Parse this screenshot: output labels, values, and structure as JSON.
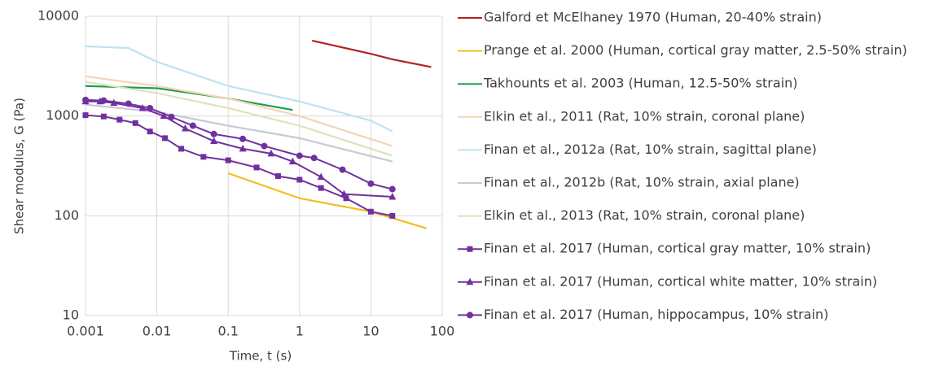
{
  "chart_data": {
    "type": "line",
    "log_x": true,
    "log_y": true,
    "grid": true,
    "legend": "right",
    "xlabel": "Time, t (s)",
    "ylabel": "Shear modulus, G (Pa)",
    "xlim": [
      0.001,
      100
    ],
    "xticks": [
      0.001,
      0.01,
      0.1,
      1,
      10,
      100
    ],
    "ylim": [
      10,
      10000
    ],
    "yticks": [
      10,
      100,
      1000,
      10000
    ],
    "series": [
      {
        "name": "Galford et McElhaney 1970 (Human, 20-40% strain)",
        "color": "#b22222",
        "x": [
          1.5,
          10,
          20,
          70
        ],
        "values": [
          5700,
          4200,
          3700,
          3100
        ]
      },
      {
        "name": "Prange et al. 2000 (Human, cortical gray matter, 2.5-50% strain)",
        "color": "#f0c020",
        "x": [
          0.1,
          1,
          10,
          60
        ],
        "values": [
          267,
          150,
          110,
          75
        ]
      },
      {
        "name": "Takhounts et al. 2003 (Human, 12.5-50% strain)",
        "color": "#1e9e50",
        "x": [
          0.001,
          0.01,
          0.1,
          0.8
        ],
        "values": [
          2000,
          1900,
          1500,
          1150
        ]
      },
      {
        "name": "Elkin et al., 2011 (Rat, 10% strain, coronal plane)",
        "color": "#f5d5b5",
        "x": [
          0.001,
          0.01,
          0.1,
          1,
          20
        ],
        "values": [
          2500,
          2000,
          1500,
          1000,
          500
        ]
      },
      {
        "name": "Finan et al., 2012a (Rat, 10% strain, sagittal plane)",
        "color": "#bde3f0",
        "x": [
          0.001,
          0.004,
          0.01,
          0.1,
          1,
          10,
          20
        ],
        "values": [
          5000,
          4800,
          3500,
          2000,
          1400,
          900,
          700
        ]
      },
      {
        "name": "Finan et al., 2012b (Rat, 10% strain, axial plane)",
        "color": "#c8c8d8",
        "x": [
          0.001,
          0.01,
          0.1,
          1,
          20
        ],
        "values": [
          1300,
          1100,
          800,
          600,
          350
        ]
      },
      {
        "name": "Elkin et al., 2013 (Rat, 10% strain, coronal plane)",
        "color": "#dfe3b8",
        "x": [
          0.001,
          0.01,
          0.1,
          1,
          20
        ],
        "values": [
          2200,
          1700,
          1200,
          800,
          400
        ]
      },
      {
        "name": "Finan et al. 2017 (Human, cortical gray matter, 10% strain)",
        "color": "#7030a0",
        "marker": "square",
        "x": [
          0.001,
          0.0018,
          0.003,
          0.005,
          0.008,
          0.013,
          0.022,
          0.045,
          0.1,
          0.25,
          0.5,
          1,
          2,
          4.5,
          10,
          20
        ],
        "values": [
          1020,
          990,
          920,
          850,
          700,
          600,
          470,
          390,
          360,
          305,
          250,
          230,
          190,
          150,
          110,
          100
        ]
      },
      {
        "name": "Finan et al. 2017 (Human, cortical white matter, 10% strain)",
        "color": "#7030a0",
        "marker": "triangle",
        "x": [
          0.001,
          0.0016,
          0.0025,
          0.0063,
          0.0125,
          0.025,
          0.063,
          0.16,
          0.4,
          0.8,
          2,
          4.2,
          20
        ],
        "values": [
          1400,
          1400,
          1350,
          1200,
          1000,
          750,
          560,
          470,
          420,
          350,
          245,
          165,
          155
        ]
      },
      {
        "name": "Finan et al. 2017 (Human, hippocampus, 10% strain)",
        "color": "#7030a0",
        "marker": "circle",
        "x": [
          0.001,
          0.0018,
          0.004,
          0.008,
          0.016,
          0.032,
          0.063,
          0.16,
          0.32,
          1,
          1.6,
          4,
          10,
          20
        ],
        "values": [
          1450,
          1430,
          1330,
          1200,
          980,
          800,
          660,
          590,
          500,
          400,
          380,
          290,
          210,
          185
        ]
      }
    ]
  }
}
